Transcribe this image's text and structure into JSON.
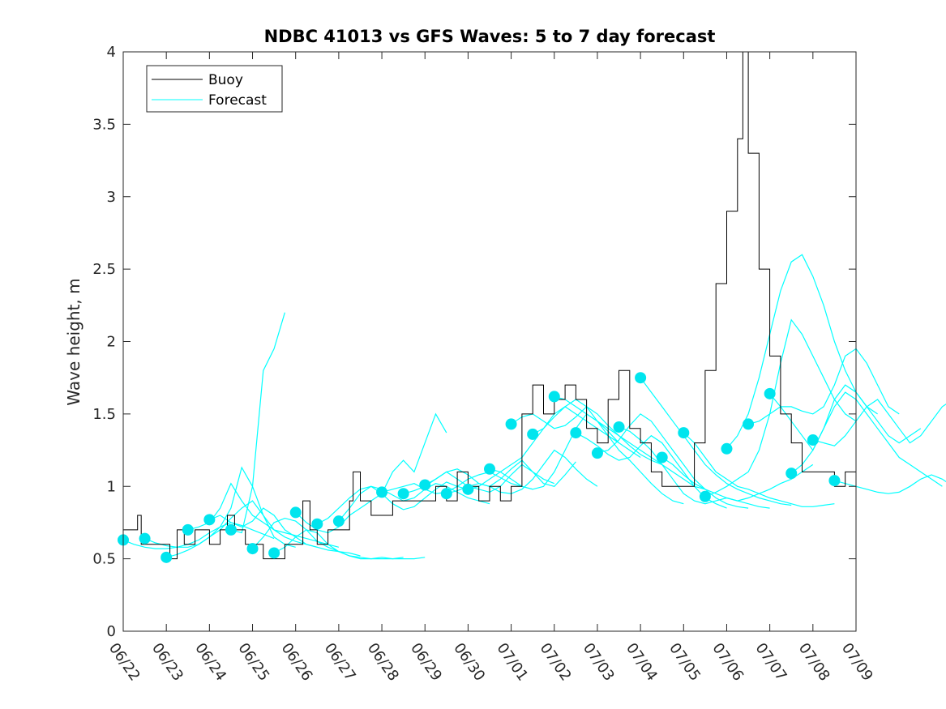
{
  "chart_data": {
    "type": "line",
    "title": "NDBC 41013 vs GFS Waves: 5 to 7 day forecast",
    "xlabel": "",
    "ylabel": "Wave height, m",
    "xlim": [
      "06/22",
      "07/09"
    ],
    "ylim": [
      0,
      4
    ],
    "x_ticks": [
      "06/22",
      "06/23",
      "06/24",
      "06/25",
      "06/26",
      "06/27",
      "06/28",
      "06/29",
      "06/30",
      "07/01",
      "07/02",
      "07/03",
      "07/04",
      "07/05",
      "07/06",
      "07/07",
      "07/08",
      "07/09"
    ],
    "y_ticks": [
      "0",
      "0.5",
      "1",
      "1.5",
      "2",
      "2.5",
      "3",
      "3.5",
      "4"
    ],
    "grid": false,
    "legend_position": "top-left",
    "x_value_note_units": "days from 06/22",
    "colors": {
      "buoy": "#000000",
      "forecast": "#00ffff",
      "marker": "#00e5ee"
    },
    "legend": [
      {
        "label": "Buoy",
        "color": "#000000"
      },
      {
        "label": "Forecast",
        "color": "#00ffff"
      }
    ],
    "buoy": {
      "name": "Buoy",
      "points": [
        [
          "06/22 00h",
          0.7
        ],
        [
          "06/22 06h",
          0.7
        ],
        [
          "06/22 08h",
          0.8
        ],
        [
          "06/22 10h",
          0.6
        ],
        [
          "06/22 18h",
          0.6
        ],
        [
          "06/23 00h",
          0.6
        ],
        [
          "06/23 02h",
          0.5
        ],
        [
          "06/23 06h",
          0.7
        ],
        [
          "06/23 10h",
          0.6
        ],
        [
          "06/23 16h",
          0.7
        ],
        [
          "06/24 00h",
          0.6
        ],
        [
          "06/24 06h",
          0.7
        ],
        [
          "06/24 10h",
          0.8
        ],
        [
          "06/24 14h",
          0.7
        ],
        [
          "06/24 20h",
          0.6
        ],
        [
          "06/25 00h",
          0.6
        ],
        [
          "06/25 06h",
          0.5
        ],
        [
          "06/25 12h",
          0.5
        ],
        [
          "06/25 18h",
          0.6
        ],
        [
          "06/26 00h",
          0.6
        ],
        [
          "06/26 04h",
          0.9
        ],
        [
          "06/26 08h",
          0.7
        ],
        [
          "06/26 12h",
          0.6
        ],
        [
          "06/26 18h",
          0.7
        ],
        [
          "06/27 00h",
          0.7
        ],
        [
          "06/27 06h",
          0.9
        ],
        [
          "06/27 08h",
          1.1
        ],
        [
          "06/27 12h",
          0.9
        ],
        [
          "06/27 18h",
          0.8
        ],
        [
          "06/28 00h",
          0.8
        ],
        [
          "06/28 06h",
          0.9
        ],
        [
          "06/28 12h",
          0.9
        ],
        [
          "06/28 18h",
          0.9
        ],
        [
          "06/29 00h",
          0.9
        ],
        [
          "06/29 06h",
          1.0
        ],
        [
          "06/29 12h",
          0.9
        ],
        [
          "06/29 18h",
          1.1
        ],
        [
          "06/30 00h",
          1.0
        ],
        [
          "06/30 06h",
          0.9
        ],
        [
          "06/30 12h",
          1.0
        ],
        [
          "06/30 18h",
          0.9
        ],
        [
          "07/01 00h",
          1.0
        ],
        [
          "07/01 06h",
          1.5
        ],
        [
          "07/01 12h",
          1.7
        ],
        [
          "07/01 18h",
          1.5
        ],
        [
          "07/02 00h",
          1.6
        ],
        [
          "07/02 06h",
          1.7
        ],
        [
          "07/02 12h",
          1.6
        ],
        [
          "07/02 18h",
          1.4
        ],
        [
          "07/03 00h",
          1.3
        ],
        [
          "07/03 06h",
          1.6
        ],
        [
          "07/03 12h",
          1.8
        ],
        [
          "07/03 18h",
          1.4
        ],
        [
          "07/04 00h",
          1.3
        ],
        [
          "07/04 06h",
          1.1
        ],
        [
          "07/04 12h",
          1.0
        ],
        [
          "07/04 18h",
          1.0
        ],
        [
          "07/05 00h",
          1.0
        ],
        [
          "07/05 06h",
          1.3
        ],
        [
          "07/05 12h",
          1.8
        ],
        [
          "07/05 18h",
          2.4
        ],
        [
          "07/06 00h",
          2.9
        ],
        [
          "07/06 06h",
          3.4
        ],
        [
          "07/06 09h",
          4.0
        ],
        [
          "07/06 12h",
          3.3
        ],
        [
          "07/06 18h",
          2.5
        ],
        [
          "07/07 00h",
          1.9
        ],
        [
          "07/07 06h",
          1.5
        ],
        [
          "07/07 12h",
          1.3
        ],
        [
          "07/07 18h",
          1.1
        ],
        [
          "07/08 00h",
          1.1
        ],
        [
          "07/08 06h",
          1.1
        ],
        [
          "07/08 12h",
          1.0
        ],
        [
          "07/08 18h",
          1.1
        ],
        [
          "07/09 00h",
          1.0
        ]
      ]
    },
    "forecasts": [
      {
        "start": "06/22 00h",
        "values": [
          0.63,
          0.6,
          0.58,
          0.57,
          0.57,
          0.58,
          0.6,
          0.63,
          0.68,
          0.72,
          0.75,
          0.73,
          0.7,
          0.67,
          0.64
        ]
      },
      {
        "start": "06/22 12h",
        "values": [
          0.64,
          0.61,
          0.59,
          0.58,
          0.58,
          0.6,
          0.65,
          0.7,
          0.78,
          0.85,
          0.9,
          0.8,
          0.65,
          0.6,
          0.58
        ]
      },
      {
        "start": "06/23 00h",
        "values": [
          0.51,
          0.53,
          0.56,
          0.6,
          0.65,
          0.72,
          0.85,
          1.13,
          1.0,
          0.8,
          0.7,
          0.65,
          0.62,
          0.6,
          0.58
        ]
      },
      {
        "start": "06/23 12h",
        "values": [
          0.7,
          0.72,
          0.75,
          0.85,
          1.02,
          0.9,
          0.8,
          0.75,
          0.7,
          0.68,
          0.66,
          0.64,
          0.62,
          0.6,
          0.58
        ]
      },
      {
        "start": "06/24 00h",
        "values": [
          0.77,
          0.8,
          0.75,
          0.72,
          0.76,
          0.85,
          0.8,
          0.7,
          0.65,
          0.6,
          0.58,
          0.56,
          0.55,
          0.54,
          0.52
        ]
      },
      {
        "start": "06/24 12h",
        "values": [
          0.7,
          0.68,
          1.0,
          1.8,
          1.95,
          2.2
        ]
      },
      {
        "start": "06/25 00h",
        "values": [
          0.57,
          0.65,
          0.75,
          0.78,
          0.76,
          0.7,
          0.62,
          0.58,
          0.55,
          0.52,
          0.51,
          0.5,
          0.5,
          0.5,
          0.51
        ]
      },
      {
        "start": "06/25 12h",
        "values": [
          0.54,
          0.58,
          0.65,
          0.7,
          0.68,
          0.6,
          0.55,
          0.52,
          0.5,
          0.5,
          0.51,
          0.5,
          0.5,
          0.5,
          0.51
        ]
      },
      {
        "start": "06/26 00h",
        "values": [
          0.82,
          0.75,
          0.7,
          0.68,
          0.72,
          0.8,
          0.85,
          0.9,
          0.95,
          1.1,
          1.18,
          1.1,
          1.3,
          1.5,
          1.37
        ]
      },
      {
        "start": "06/26 12h",
        "values": [
          0.74,
          0.78,
          0.85,
          0.92,
          0.98,
          1.0,
          0.95,
          0.88,
          0.84,
          0.86,
          0.92,
          0.98,
          1.03,
          1.0,
          0.98
        ]
      },
      {
        "start": "06/27 00h",
        "values": [
          0.76,
          0.85,
          0.95,
          1.0,
          0.98,
          0.94,
          0.9,
          0.92,
          0.98,
          1.02,
          1.0,
          0.96,
          0.92,
          0.9,
          0.88
        ]
      },
      {
        "start": "06/28 00h",
        "values": [
          0.96,
          0.98,
          1.0,
          1.02,
          0.98,
          0.95,
          0.96,
          1.0,
          1.05,
          1.08,
          1.1,
          1.06,
          1.02,
          1.0,
          0.98
        ]
      },
      {
        "start": "06/28 12h",
        "values": [
          0.95,
          0.97,
          1.0,
          1.05,
          1.1,
          1.05,
          1.0,
          0.98,
          0.96,
          1.0,
          1.08,
          1.15,
          1.1,
          1.05,
          1.02
        ]
      },
      {
        "start": "06/29 00h",
        "values": [
          1.01,
          1.05,
          1.1,
          1.12,
          1.08,
          1.02,
          1.0,
          1.05,
          1.12,
          1.18,
          1.1,
          1.02,
          1.0,
          1.08,
          1.17
        ]
      },
      {
        "start": "06/29 12h",
        "values": [
          0.95,
          0.97,
          1.0,
          1.02,
          1.0,
          0.96,
          0.95,
          0.98,
          1.05,
          1.15,
          1.25,
          1.2,
          1.12,
          1.05,
          1.0
        ]
      },
      {
        "start": "06/30 00h",
        "values": [
          0.98,
          1.0,
          1.05,
          1.1,
          1.15,
          1.2,
          1.3,
          1.4,
          1.5,
          1.55,
          1.5,
          1.45,
          1.4,
          1.35,
          1.3
        ]
      },
      {
        "start": "06/30 12h",
        "values": [
          1.12,
          1.1,
          1.05,
          1.0,
          0.98,
          1.0,
          1.1,
          1.25,
          1.4,
          1.5,
          1.45,
          1.38,
          1.3,
          1.25,
          1.2
        ]
      },
      {
        "start": "07/01 00h",
        "values": [
          1.43,
          1.48,
          1.5,
          1.45,
          1.4,
          1.42,
          1.48,
          1.55,
          1.5,
          1.42,
          1.35,
          1.28,
          1.22,
          1.18,
          1.15
        ]
      },
      {
        "start": "07/01 12h",
        "values": [
          1.36,
          1.4,
          1.48,
          1.55,
          1.6,
          1.55,
          1.45,
          1.35,
          1.25,
          1.18,
          1.1,
          1.02,
          0.95,
          0.9,
          0.88
        ]
      },
      {
        "start": "07/02 00h",
        "values": [
          1.62,
          1.6,
          1.55,
          1.5,
          1.45,
          1.4,
          1.35,
          1.3,
          1.25,
          1.2,
          1.15,
          1.1,
          1.05,
          1.0,
          0.98
        ]
      },
      {
        "start": "07/02 12h",
        "values": [
          1.37,
          1.33,
          1.28,
          1.22,
          1.18,
          1.2,
          1.28,
          1.35,
          1.3,
          1.2,
          1.1,
          1.0,
          0.92,
          0.88,
          0.85
        ]
      },
      {
        "start": "07/03 00h",
        "values": [
          1.23,
          1.25,
          1.32,
          1.42,
          1.5,
          1.45,
          1.35,
          1.25,
          1.15,
          1.05,
          0.98,
          0.92,
          0.88,
          0.86,
          0.85
        ]
      },
      {
        "start": "07/03 12h",
        "values": [
          1.41,
          1.38,
          1.32,
          1.25,
          1.15,
          1.05,
          0.95,
          0.9,
          0.88,
          0.9,
          0.92,
          0.9,
          0.88,
          0.86,
          0.85
        ]
      },
      {
        "start": "07/04 00h",
        "values": [
          1.75,
          1.65,
          1.55,
          1.45,
          1.35,
          1.25,
          1.15,
          1.08,
          1.02,
          0.98,
          0.95,
          0.92,
          0.9,
          0.88,
          0.87
        ]
      },
      {
        "start": "07/04 12h",
        "values": [
          1.2,
          1.15,
          1.08,
          1.02,
          0.98,
          0.95,
          0.92,
          0.9,
          0.92,
          0.95,
          0.98,
          1.02,
          1.05,
          1.1,
          1.15
        ]
      },
      {
        "start": "07/05 00h",
        "values": [
          1.37,
          1.3,
          1.2,
          1.1,
          1.05,
          1.0,
          0.98,
          0.95,
          0.92,
          0.9,
          0.88,
          0.86,
          0.86,
          0.87,
          0.88
        ]
      },
      {
        "start": "07/05 12h",
        "values": [
          0.93,
          0.96,
          1.0,
          1.05,
          1.1,
          1.25,
          1.5,
          1.85,
          2.15,
          2.05,
          1.9,
          1.75,
          1.6,
          1.5,
          1.45
        ]
      },
      {
        "start": "07/06 00h",
        "values": [
          1.26,
          1.35,
          1.5,
          1.75,
          2.05,
          2.35,
          2.55,
          2.6,
          2.45,
          2.25,
          2.0,
          1.8,
          1.65,
          1.55,
          1.5
        ]
      },
      {
        "start": "07/06 12h",
        "values": [
          1.43,
          1.45,
          1.5,
          1.55,
          1.55,
          1.52,
          1.5,
          1.55,
          1.7,
          1.9,
          1.95,
          1.85,
          1.7,
          1.55,
          1.5
        ]
      },
      {
        "start": "07/07 00h",
        "values": [
          1.64,
          1.55,
          1.45,
          1.35,
          1.25,
          1.4,
          1.6,
          1.7,
          1.65,
          1.55,
          1.45,
          1.35,
          1.3,
          1.35,
          1.4
        ]
      },
      {
        "start": "07/07 12h",
        "values": [
          1.09,
          1.15,
          1.25,
          1.4,
          1.55,
          1.65,
          1.6,
          1.5,
          1.4,
          1.3,
          1.2,
          1.15,
          1.1,
          1.05,
          1.0
        ]
      },
      {
        "start": "07/08 00h",
        "values": [
          1.32,
          1.3,
          1.28,
          1.35,
          1.45,
          1.55,
          1.6,
          1.5,
          1.4,
          1.3,
          1.35,
          1.45,
          1.55,
          1.6,
          1.62
        ]
      },
      {
        "start": "07/08 12h",
        "values": [
          1.04,
          1.02,
          1.0,
          0.98,
          0.96,
          0.95,
          0.96,
          1.0,
          1.05,
          1.08,
          1.05,
          1.0,
          0.95,
          0.92,
          0.9
        ]
      }
    ]
  }
}
